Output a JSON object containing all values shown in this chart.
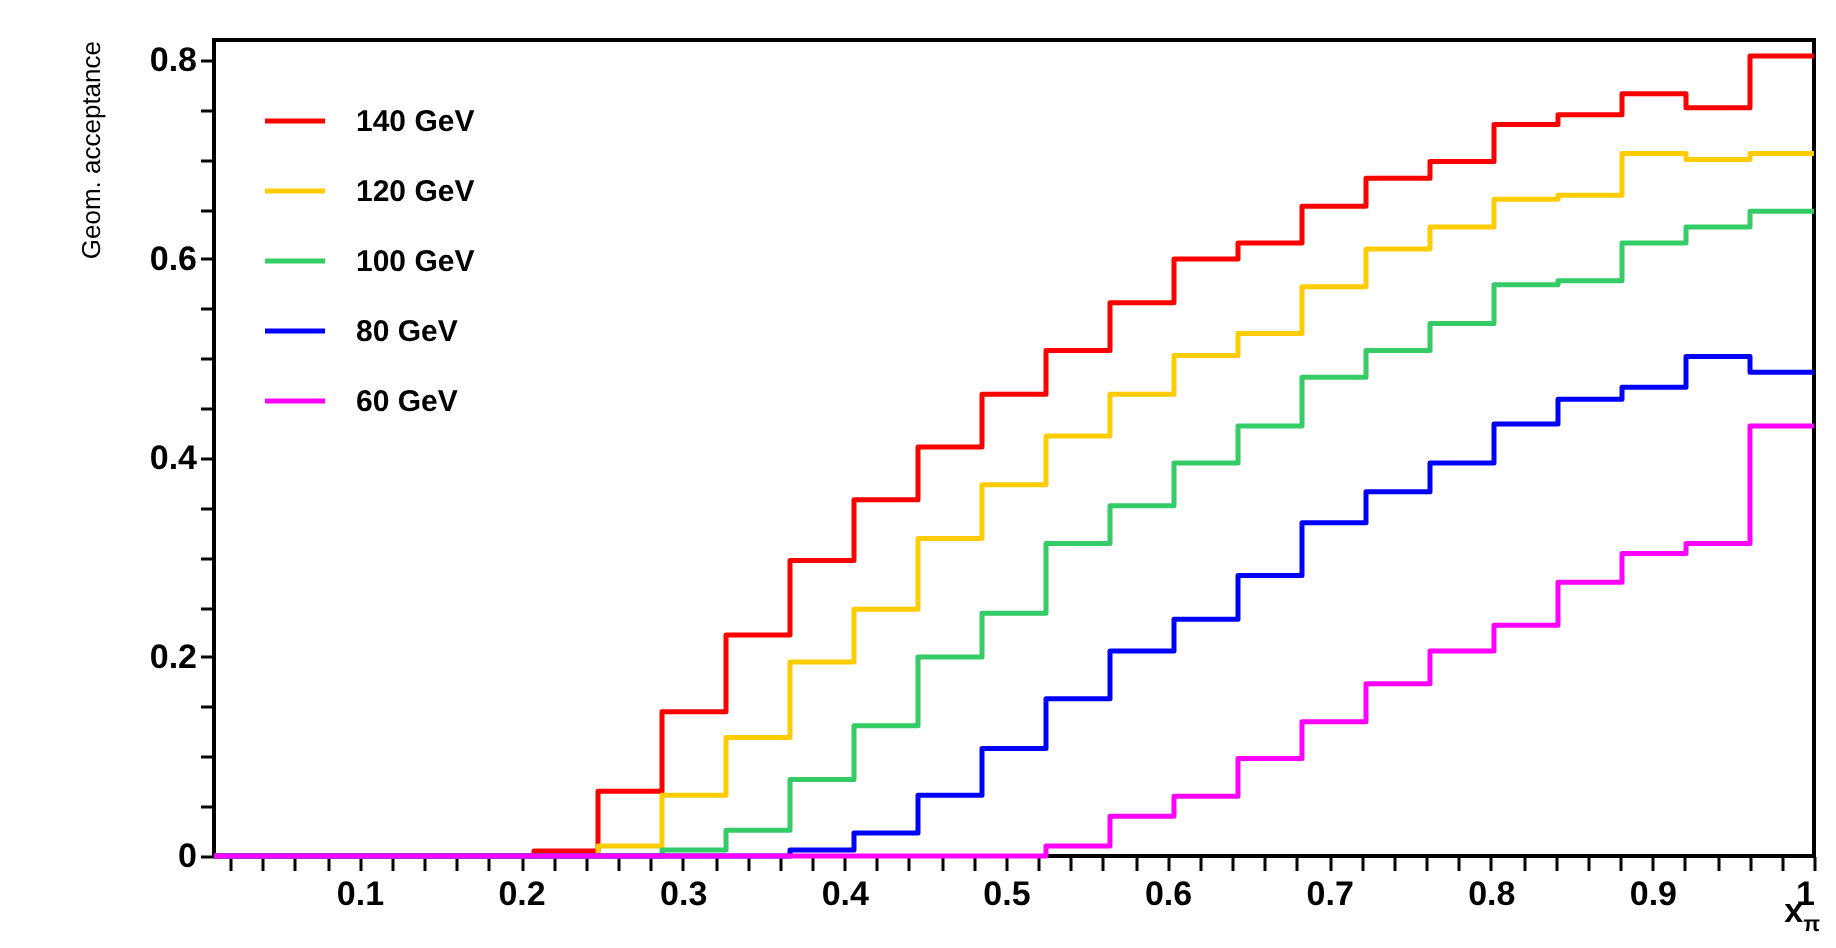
{
  "chart_data": {
    "type": "histogram",
    "xlabel": "x$_{π}$",
    "ylabel": "Geom. acceptance",
    "bins": [
      0.01,
      0.0496,
      0.0892,
      0.1288,
      0.1684,
      0.208,
      0.2476,
      0.2872,
      0.3268,
      0.3664,
      0.406,
      0.4456,
      0.4852,
      0.5248,
      0.5644,
      0.604,
      0.6436,
      0.6832,
      0.7228,
      0.7624,
      0.802,
      0.8416,
      0.8812,
      0.9208,
      0.9604,
      1
    ],
    "series": [
      {
        "name": "140 GeV",
        "color": "#ff0000",
        "values": [
          0,
          0,
          0,
          0,
          0,
          0.005,
          0.065,
          0.145,
          0.222,
          0.297,
          0.358,
          0.411,
          0.464,
          0.508,
          0.556,
          0.6,
          0.616,
          0.653,
          0.681,
          0.698,
          0.735,
          0.745,
          0.766,
          0.752,
          0.804
        ]
      },
      {
        "name": "120 GeV",
        "color": "#ffcc00",
        "values": [
          0,
          0,
          0,
          0,
          0,
          0,
          0.01,
          0.061,
          0.119,
          0.195,
          0.248,
          0.319,
          0.373,
          0.422,
          0.464,
          0.503,
          0.525,
          0.572,
          0.61,
          0.632,
          0.66,
          0.664,
          0.706,
          0.7,
          0.706
        ]
      },
      {
        "name": "100 GeV",
        "color": "#33cc66",
        "values": [
          0,
          0,
          0,
          0,
          0,
          0,
          0,
          0.006,
          0.026,
          0.077,
          0.131,
          0.2,
          0.244,
          0.314,
          0.352,
          0.395,
          0.432,
          0.481,
          0.508,
          0.535,
          0.574,
          0.578,
          0.616,
          0.632,
          0.648
        ]
      },
      {
        "name": "80 GeV",
        "color": "#0000ff",
        "values": [
          0,
          0,
          0,
          0,
          0,
          0,
          0,
          0,
          0,
          0.006,
          0.023,
          0.061,
          0.108,
          0.158,
          0.206,
          0.238,
          0.282,
          0.335,
          0.366,
          0.395,
          0.434,
          0.459,
          0.471,
          0.502,
          0.486
        ]
      },
      {
        "name": "60 GeV",
        "color": "#ff00ff",
        "values": [
          0,
          0,
          0,
          0,
          0,
          0,
          0,
          0,
          0,
          0,
          0,
          0,
          0,
          0.01,
          0.04,
          0.06,
          0.098,
          0.135,
          0.173,
          0.206,
          0.232,
          0.275,
          0.304,
          0.314,
          0.432
        ]
      }
    ],
    "xlim": [
      0.01,
      1
    ],
    "xticks": [
      {
        "value": 0.02,
        "label": null
      },
      {
        "value": 0.04,
        "label": null
      },
      {
        "value": 0.06,
        "label": null
      },
      {
        "value": 0.08,
        "label": null
      },
      0.1,
      {
        "value": 0.12,
        "label": null
      },
      {
        "value": 0.14,
        "label": null
      },
      {
        "value": 0.16,
        "label": null
      },
      {
        "value": 0.18,
        "label": null
      },
      0.2,
      {
        "value": 0.22,
        "label": null
      },
      {
        "value": 0.24,
        "label": null
      },
      {
        "value": 0.26,
        "label": null
      },
      {
        "value": 0.28,
        "label": null
      },
      0.3,
      {
        "value": 0.32,
        "label": null
      },
      {
        "value": 0.34,
        "label": null
      },
      {
        "value": 0.36,
        "label": null
      },
      {
        "value": 0.38,
        "label": null
      },
      0.4,
      {
        "value": 0.42,
        "label": null
      },
      {
        "value": 0.44,
        "label": null
      },
      {
        "value": 0.46,
        "label": null
      },
      {
        "value": 0.48,
        "label": null
      },
      0.5,
      {
        "value": 0.52,
        "label": null
      },
      {
        "value": 0.54,
        "label": null
      },
      {
        "value": 0.56,
        "label": null
      },
      {
        "value": 0.58,
        "label": null
      },
      0.6,
      {
        "value": 0.62,
        "label": null
      },
      {
        "value": 0.64,
        "label": null
      },
      {
        "value": 0.66,
        "label": null
      },
      {
        "value": 0.68,
        "label": null
      },
      0.7,
      {
        "value": 0.72,
        "label": null
      },
      {
        "value": 0.74,
        "label": null
      },
      {
        "value": 0.76,
        "label": null
      },
      {
        "value": 0.78,
        "label": null
      },
      0.8,
      {
        "value": 0.82,
        "label": null
      },
      {
        "value": 0.84,
        "label": null
      },
      {
        "value": 0.86,
        "label": null
      },
      {
        "value": 0.88,
        "label": null
      },
      0.9,
      {
        "value": 0.92,
        "label": null
      },
      {
        "value": 0.94,
        "label": null
      },
      {
        "value": 0.96,
        "label": null
      },
      {
        "value": 0.98,
        "label": null
      },
      1
    ],
    "ylim": [
      0,
      0.82
    ],
    "yticks": [
      0,
      {
        "value": 0.05,
        "label": null
      },
      {
        "value": 0.1,
        "label": null
      },
      {
        "value": 0.15,
        "label": null
      },
      0.2,
      {
        "value": 0.25,
        "label": null
      },
      {
        "value": 0.3,
        "label": null
      },
      {
        "value": 0.35,
        "label": null
      },
      0.4,
      {
        "value": 0.45,
        "label": null
      },
      {
        "value": 0.5,
        "label": null
      },
      {
        "value": 0.55,
        "label": null
      },
      0.6,
      {
        "value": 0.65,
        "label": null
      },
      {
        "value": 0.7,
        "label": null
      },
      {
        "value": 0.75,
        "label": null
      },
      0.8
    ],
    "legend": "top left"
  }
}
